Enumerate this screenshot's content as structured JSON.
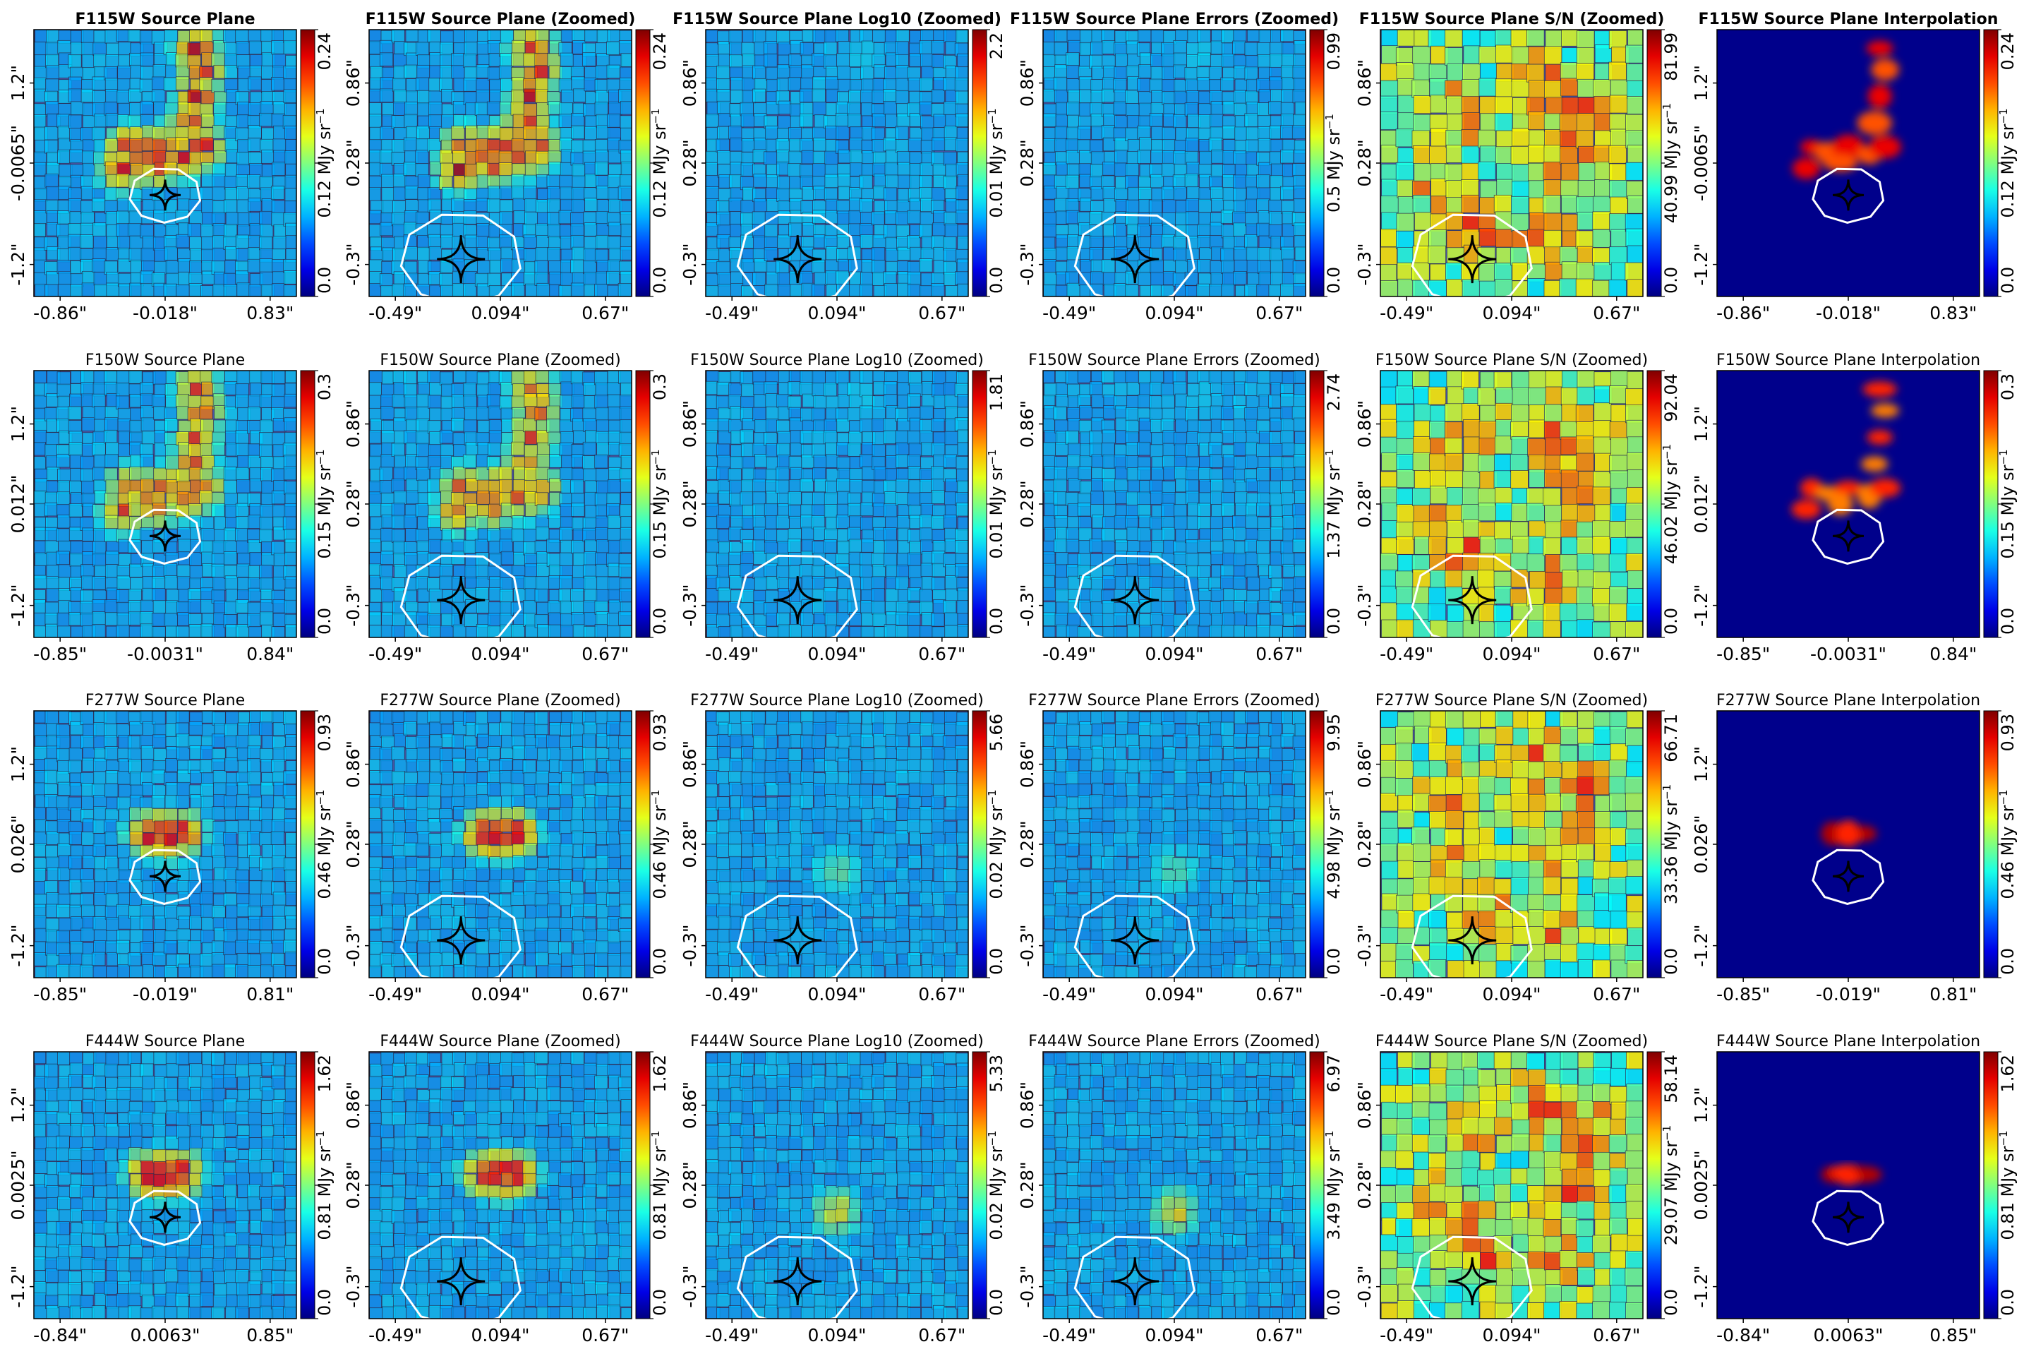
{
  "figure": {
    "colormap": "jet",
    "colorbar_unit": "MJy sr⁻¹",
    "colorbar_unit_prefix": "MJy sr",
    "colorbar_unit_exponent": "−1",
    "caustic_color": "#000000",
    "critical_curve_color": "#ffffff",
    "background_color": "#4a55a6"
  },
  "chart_data": [
    {
      "type": "heatmap",
      "kind": "interpolation",
      "title": "F115W Source Plane",
      "bold_title": true,
      "zoomed": false,
      "xticks": [
        "-0.86\"",
        "-0.018\"",
        "0.83\""
      ],
      "yticks": [
        "1.2\"",
        "-0.0065\"",
        "-1.2\""
      ],
      "colorbar_ticks": [
        "0.0",
        "0.12",
        "0.24"
      ],
      "colorbar_label": "0.12",
      "feature": "ring",
      "intensity": 0.9
    },
    {
      "type": "heatmap",
      "kind": "voronoi",
      "title": "F115W Source Plane (Zoomed)",
      "bold_title": true,
      "zoomed": true,
      "xticks": [
        "-0.49\"",
        "0.094\"",
        "0.67\""
      ],
      "yticks": [
        "0.86\"",
        "0.28\"",
        "-0.3\""
      ],
      "colorbar_ticks": [
        "0.0",
        "0.12",
        "0.24"
      ],
      "colorbar_label": "0.12",
      "feature": "ring",
      "intensity": 0.9
    },
    {
      "type": "heatmap",
      "kind": "voronoi",
      "title": "F115W Source Plane Log10 (Zoomed)",
      "bold_title": true,
      "zoomed": true,
      "xticks": [
        "-0.49\"",
        "0.094\"",
        "0.67\""
      ],
      "yticks": [
        "0.86\"",
        "0.28\"",
        "-0.3\""
      ],
      "colorbar_ticks": [
        "0.0",
        "0.01",
        "2.2"
      ],
      "colorbar_label": "0.01",
      "feature": "sparse",
      "intensity": 0.1
    },
    {
      "type": "heatmap",
      "kind": "voronoi",
      "title": "F115W Source Plane Errors (Zoomed)",
      "bold_title": true,
      "zoomed": true,
      "xticks": [
        "-0.49\"",
        "0.094\"",
        "0.67\""
      ],
      "yticks": [
        "0.86\"",
        "0.28\"",
        "-0.3\""
      ],
      "colorbar_ticks": [
        "0.0",
        "0.5",
        "0.99"
      ],
      "colorbar_label": "0.5",
      "feature": "sparse",
      "intensity": 0.1
    },
    {
      "type": "heatmap",
      "kind": "voronoi",
      "title": "F115W Source Plane S/N (Zoomed)",
      "bold_title": true,
      "zoomed": true,
      "xticks": [
        "-0.49\"",
        "0.094\"",
        "0.67\""
      ],
      "yticks": [
        "0.86\"",
        "0.28\"",
        "-0.3\""
      ],
      "colorbar_ticks": [
        "0.0",
        "40.99",
        "81.99"
      ],
      "colorbar_label": "40.99",
      "feature": "snr",
      "intensity": 0.7
    },
    {
      "type": "heatmap",
      "kind": "interpolation",
      "title": "F115W Source Plane Interpolation",
      "bold_title": true,
      "zoomed": false,
      "xticks": [
        "-0.86\"",
        "-0.018\"",
        "0.83\""
      ],
      "yticks": [
        "1.2\"",
        "-0.0065\"",
        "-1.2\""
      ],
      "colorbar_ticks": [
        "0.0",
        "0.12",
        "0.24"
      ],
      "colorbar_label": "0.12",
      "feature": "ring",
      "intensity": 0.9
    },
    {
      "type": "heatmap",
      "kind": "interpolation",
      "title": "F150W Source Plane",
      "bold_title": false,
      "zoomed": false,
      "xticks": [
        "-0.85\"",
        "-0.0031\"",
        "0.84\""
      ],
      "yticks": [
        "1.2\"",
        "0.012\"",
        "-1.2\""
      ],
      "colorbar_ticks": [
        "0.0",
        "0.15",
        "0.3"
      ],
      "colorbar_label": "0.15",
      "feature": "ring",
      "intensity": 0.8
    },
    {
      "type": "heatmap",
      "kind": "voronoi",
      "title": "F150W Source Plane (Zoomed)",
      "bold_title": false,
      "zoomed": true,
      "xticks": [
        "-0.49\"",
        "0.094\"",
        "0.67\""
      ],
      "yticks": [
        "0.86\"",
        "0.28\"",
        "-0.3\""
      ],
      "colorbar_ticks": [
        "0.0",
        "0.15",
        "0.3"
      ],
      "colorbar_label": "0.15",
      "feature": "ring",
      "intensity": 0.8
    },
    {
      "type": "heatmap",
      "kind": "voronoi",
      "title": "F150W Source Plane Log10 (Zoomed)",
      "bold_title": false,
      "zoomed": true,
      "xticks": [
        "-0.49\"",
        "0.094\"",
        "0.67\""
      ],
      "yticks": [
        "0.86\"",
        "0.28\"",
        "-0.3\""
      ],
      "colorbar_ticks": [
        "0.0",
        "0.01",
        "1.81"
      ],
      "colorbar_label": "0.01",
      "feature": "sparse",
      "intensity": 0.1
    },
    {
      "type": "heatmap",
      "kind": "voronoi",
      "title": "F150W Source Plane Errors (Zoomed)",
      "bold_title": false,
      "zoomed": true,
      "xticks": [
        "-0.49\"",
        "0.094\"",
        "0.67\""
      ],
      "yticks": [
        "0.86\"",
        "0.28\"",
        "-0.3\""
      ],
      "colorbar_ticks": [
        "0.0",
        "1.37",
        "2.74"
      ],
      "colorbar_label": "1.37",
      "feature": "sparse",
      "intensity": 0.1
    },
    {
      "type": "heatmap",
      "kind": "voronoi",
      "title": "F150W Source Plane S/N (Zoomed)",
      "bold_title": false,
      "zoomed": true,
      "xticks": [
        "-0.49\"",
        "0.094\"",
        "0.67\""
      ],
      "yticks": [
        "0.86\"",
        "0.28\"",
        "-0.3\""
      ],
      "colorbar_ticks": [
        "0.0",
        "46.02",
        "92.04"
      ],
      "colorbar_label": "46.02",
      "feature": "snr",
      "intensity": 0.7
    },
    {
      "type": "heatmap",
      "kind": "interpolation",
      "title": "F150W Source Plane Interpolation",
      "bold_title": false,
      "zoomed": false,
      "xticks": [
        "-0.85\"",
        "-0.0031\"",
        "0.84\""
      ],
      "yticks": [
        "1.2\"",
        "0.012\"",
        "-1.2\""
      ],
      "colorbar_ticks": [
        "0.0",
        "0.15",
        "0.3"
      ],
      "colorbar_label": "0.15",
      "feature": "ring",
      "intensity": 0.8
    },
    {
      "type": "heatmap",
      "kind": "interpolation",
      "title": "F277W Source Plane",
      "bold_title": false,
      "zoomed": false,
      "xticks": [
        "-0.85\"",
        "-0.019\"",
        "0.81\""
      ],
      "yticks": [
        "1.2\"",
        "0.026\"",
        "-1.2\""
      ],
      "colorbar_ticks": [
        "0.0",
        "0.46",
        "0.93"
      ],
      "colorbar_label": "0.46",
      "feature": "compact",
      "intensity": 1.0
    },
    {
      "type": "heatmap",
      "kind": "voronoi",
      "title": "F277W Source Plane (Zoomed)",
      "bold_title": false,
      "zoomed": true,
      "xticks": [
        "-0.49\"",
        "0.094\"",
        "0.67\""
      ],
      "yticks": [
        "0.86\"",
        "0.28\"",
        "-0.3\""
      ],
      "colorbar_ticks": [
        "0.0",
        "0.46",
        "0.93"
      ],
      "colorbar_label": "0.46",
      "feature": "compact",
      "intensity": 1.0
    },
    {
      "type": "heatmap",
      "kind": "voronoi",
      "title": "F277W Source Plane Log10 (Zoomed)",
      "bold_title": false,
      "zoomed": true,
      "xticks": [
        "-0.49\"",
        "0.094\"",
        "0.67\""
      ],
      "yticks": [
        "0.86\"",
        "0.28\"",
        "-0.3\""
      ],
      "colorbar_ticks": [
        "0.0",
        "0.02",
        "5.66"
      ],
      "colorbar_label": "0.02",
      "feature": "point",
      "intensity": 0.3
    },
    {
      "type": "heatmap",
      "kind": "voronoi",
      "title": "F277W Source Plane Errors (Zoomed)",
      "bold_title": false,
      "zoomed": true,
      "xticks": [
        "-0.49\"",
        "0.094\"",
        "0.67\""
      ],
      "yticks": [
        "0.86\"",
        "0.28\"",
        "-0.3\""
      ],
      "colorbar_ticks": [
        "0.0",
        "4.98",
        "9.95"
      ],
      "colorbar_label": "4.98",
      "feature": "point",
      "intensity": 0.3
    },
    {
      "type": "heatmap",
      "kind": "voronoi",
      "title": "F277W Source Plane S/N (Zoomed)",
      "bold_title": false,
      "zoomed": true,
      "xticks": [
        "-0.49\"",
        "0.094\"",
        "0.67\""
      ],
      "yticks": [
        "0.86\"",
        "0.28\"",
        "-0.3\""
      ],
      "colorbar_ticks": [
        "0.0",
        "33.36",
        "66.71"
      ],
      "colorbar_label": "33.36",
      "feature": "snr",
      "intensity": 0.7
    },
    {
      "type": "heatmap",
      "kind": "interpolation",
      "title": "F277W Source Plane Interpolation",
      "bold_title": false,
      "zoomed": false,
      "xticks": [
        "-0.85\"",
        "-0.019\"",
        "0.81\""
      ],
      "yticks": [
        "1.2\"",
        "0.026\"",
        "-1.2\""
      ],
      "colorbar_ticks": [
        "0.0",
        "0.46",
        "0.93"
      ],
      "colorbar_label": "0.46",
      "feature": "compact",
      "intensity": 1.0
    },
    {
      "type": "heatmap",
      "kind": "interpolation",
      "title": "F444W Source Plane",
      "bold_title": false,
      "zoomed": false,
      "xticks": [
        "-0.84\"",
        "0.0063\"",
        "0.85\""
      ],
      "yticks": [
        "1.2\"",
        "0.0025\"",
        "-1.2\""
      ],
      "colorbar_ticks": [
        "0.0",
        "0.81",
        "1.62"
      ],
      "colorbar_label": "0.81",
      "feature": "compact",
      "intensity": 1.0
    },
    {
      "type": "heatmap",
      "kind": "voronoi",
      "title": "F444W Source Plane (Zoomed)",
      "bold_title": false,
      "zoomed": true,
      "xticks": [
        "-0.49\"",
        "0.094\"",
        "0.67\""
      ],
      "yticks": [
        "0.86\"",
        "0.28\"",
        "-0.3\""
      ],
      "colorbar_ticks": [
        "0.0",
        "0.81",
        "1.62"
      ],
      "colorbar_label": "0.81",
      "feature": "compact",
      "intensity": 1.0
    },
    {
      "type": "heatmap",
      "kind": "voronoi",
      "title": "F444W Source Plane Log10 (Zoomed)",
      "bold_title": false,
      "zoomed": true,
      "xticks": [
        "-0.49\"",
        "0.094\"",
        "0.67\""
      ],
      "yticks": [
        "0.86\"",
        "0.28\"",
        "-0.3\""
      ],
      "colorbar_ticks": [
        "0.0",
        "0.02",
        "5.33"
      ],
      "colorbar_label": "0.02",
      "feature": "point",
      "intensity": 0.6
    },
    {
      "type": "heatmap",
      "kind": "voronoi",
      "title": "F444W Source Plane Errors (Zoomed)",
      "bold_title": false,
      "zoomed": true,
      "xticks": [
        "-0.49\"",
        "0.094\"",
        "0.67\""
      ],
      "yticks": [
        "0.86\"",
        "0.28\"",
        "-0.3\""
      ],
      "colorbar_ticks": [
        "0.0",
        "3.49",
        "6.97"
      ],
      "colorbar_label": "3.49",
      "feature": "point",
      "intensity": 0.6
    },
    {
      "type": "heatmap",
      "kind": "voronoi",
      "title": "F444W Source Plane S/N (Zoomed)",
      "bold_title": false,
      "zoomed": true,
      "xticks": [
        "-0.49\"",
        "0.094\"",
        "0.67\""
      ],
      "yticks": [
        "0.86\"",
        "0.28\"",
        "-0.3\""
      ],
      "colorbar_ticks": [
        "0.0",
        "29.07",
        "58.14"
      ],
      "colorbar_label": "29.07",
      "feature": "snr",
      "intensity": 0.7
    },
    {
      "type": "heatmap",
      "kind": "interpolation",
      "title": "F444W Source Plane Interpolation",
      "bold_title": false,
      "zoomed": false,
      "xticks": [
        "-0.84\"",
        "0.0063\"",
        "0.85\""
      ],
      "yticks": [
        "1.2\"",
        "0.0025\"",
        "-1.2\""
      ],
      "colorbar_ticks": [
        "0.0",
        "0.81",
        "1.62"
      ],
      "colorbar_label": "0.81",
      "feature": "compact",
      "intensity": 1.0
    }
  ]
}
